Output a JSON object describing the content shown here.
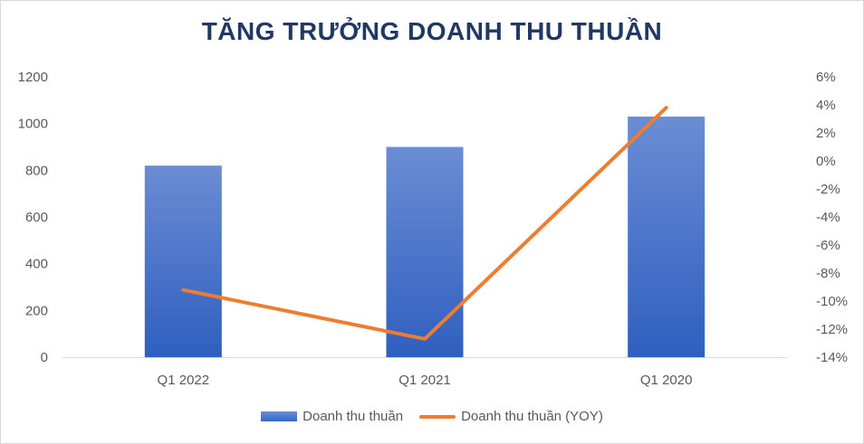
{
  "chart_data": {
    "type": "bar",
    "title": "TĂNG TRƯỞNG DOANH THU THUẦN",
    "categories": [
      "Q1 2022",
      "Q1 2021",
      "Q1 2020"
    ],
    "series": [
      {
        "name": "Doanh thu thuần",
        "type": "bar",
        "axis": "left",
        "values": [
          820,
          900,
          1030
        ],
        "color": "#4472c4"
      },
      {
        "name": "Doanh thu thuần (YOY)",
        "type": "line",
        "axis": "right",
        "values": [
          -9.2,
          -12.7,
          3.8
        ],
        "color": "#ed7d31"
      }
    ],
    "y_left": {
      "min": 0,
      "max": 1200,
      "step": 200,
      "ticks": [
        "0",
        "200",
        "400",
        "600",
        "800",
        "1000",
        "1200"
      ]
    },
    "y_right": {
      "min": -14,
      "max": 6,
      "step": 2,
      "ticks": [
        "-14%",
        "-12%",
        "-10%",
        "-8%",
        "-6%",
        "-4%",
        "-2%",
        "0%",
        "2%",
        "4%",
        "6%"
      ]
    },
    "grid": false,
    "legend_position": "bottom"
  }
}
